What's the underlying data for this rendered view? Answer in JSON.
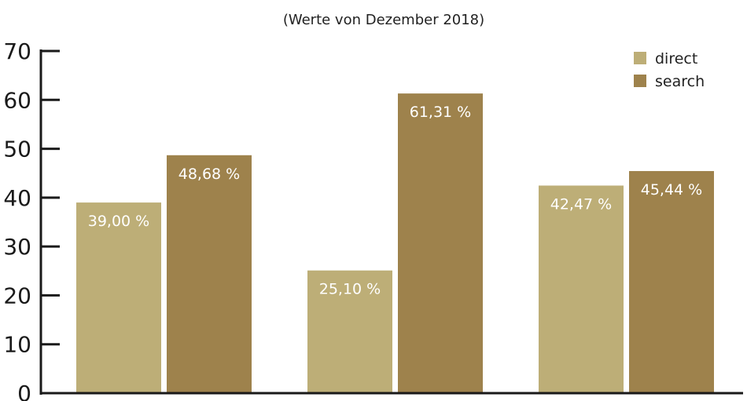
{
  "chart_data": {
    "type": "bar",
    "subtitle": "(Werte von Dezember 2018)",
    "xlabel": "",
    "ylabel": "",
    "ylim": [
      0,
      70
    ],
    "yticks": [
      0,
      10,
      20,
      30,
      40,
      50,
      60,
      70
    ],
    "grid": false,
    "legend_position": "top-right",
    "categories": [
      "",
      "",
      ""
    ],
    "series": [
      {
        "name": "direct",
        "color": "#bdae77",
        "values": [
          39.0,
          25.1,
          42.47
        ],
        "labels": [
          "39,00 %",
          "25,10 %",
          "42,47 %"
        ]
      },
      {
        "name": "search",
        "color": "#9e824c",
        "values": [
          48.68,
          61.31,
          45.44
        ],
        "labels": [
          "48,68 %",
          "61,31 %",
          "45,44 %"
        ]
      }
    ]
  }
}
